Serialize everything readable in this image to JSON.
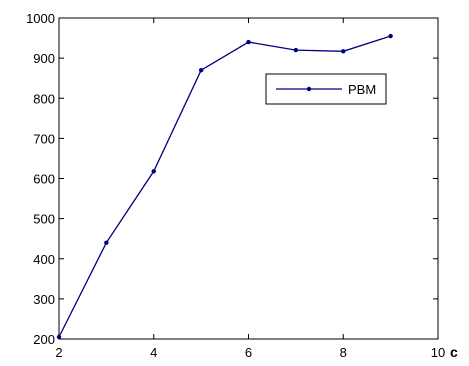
{
  "chart_data": {
    "type": "line",
    "x": [
      2,
      3,
      4,
      5,
      6,
      7,
      8,
      9
    ],
    "series": [
      {
        "name": "PBM",
        "values": [
          205,
          440,
          618,
          870,
          940,
          920,
          917,
          955
        ],
        "color": "#000080",
        "marker": "dot"
      }
    ],
    "xlabel": "c",
    "ylabel": "",
    "title": "",
    "xlim": [
      2,
      10
    ],
    "ylim": [
      200,
      1000
    ],
    "xticks": [
      2,
      4,
      6,
      8,
      10
    ],
    "yticks": [
      200,
      300,
      400,
      500,
      600,
      700,
      800,
      900,
      1000
    ],
    "grid": false,
    "legend_position": "top-right"
  }
}
